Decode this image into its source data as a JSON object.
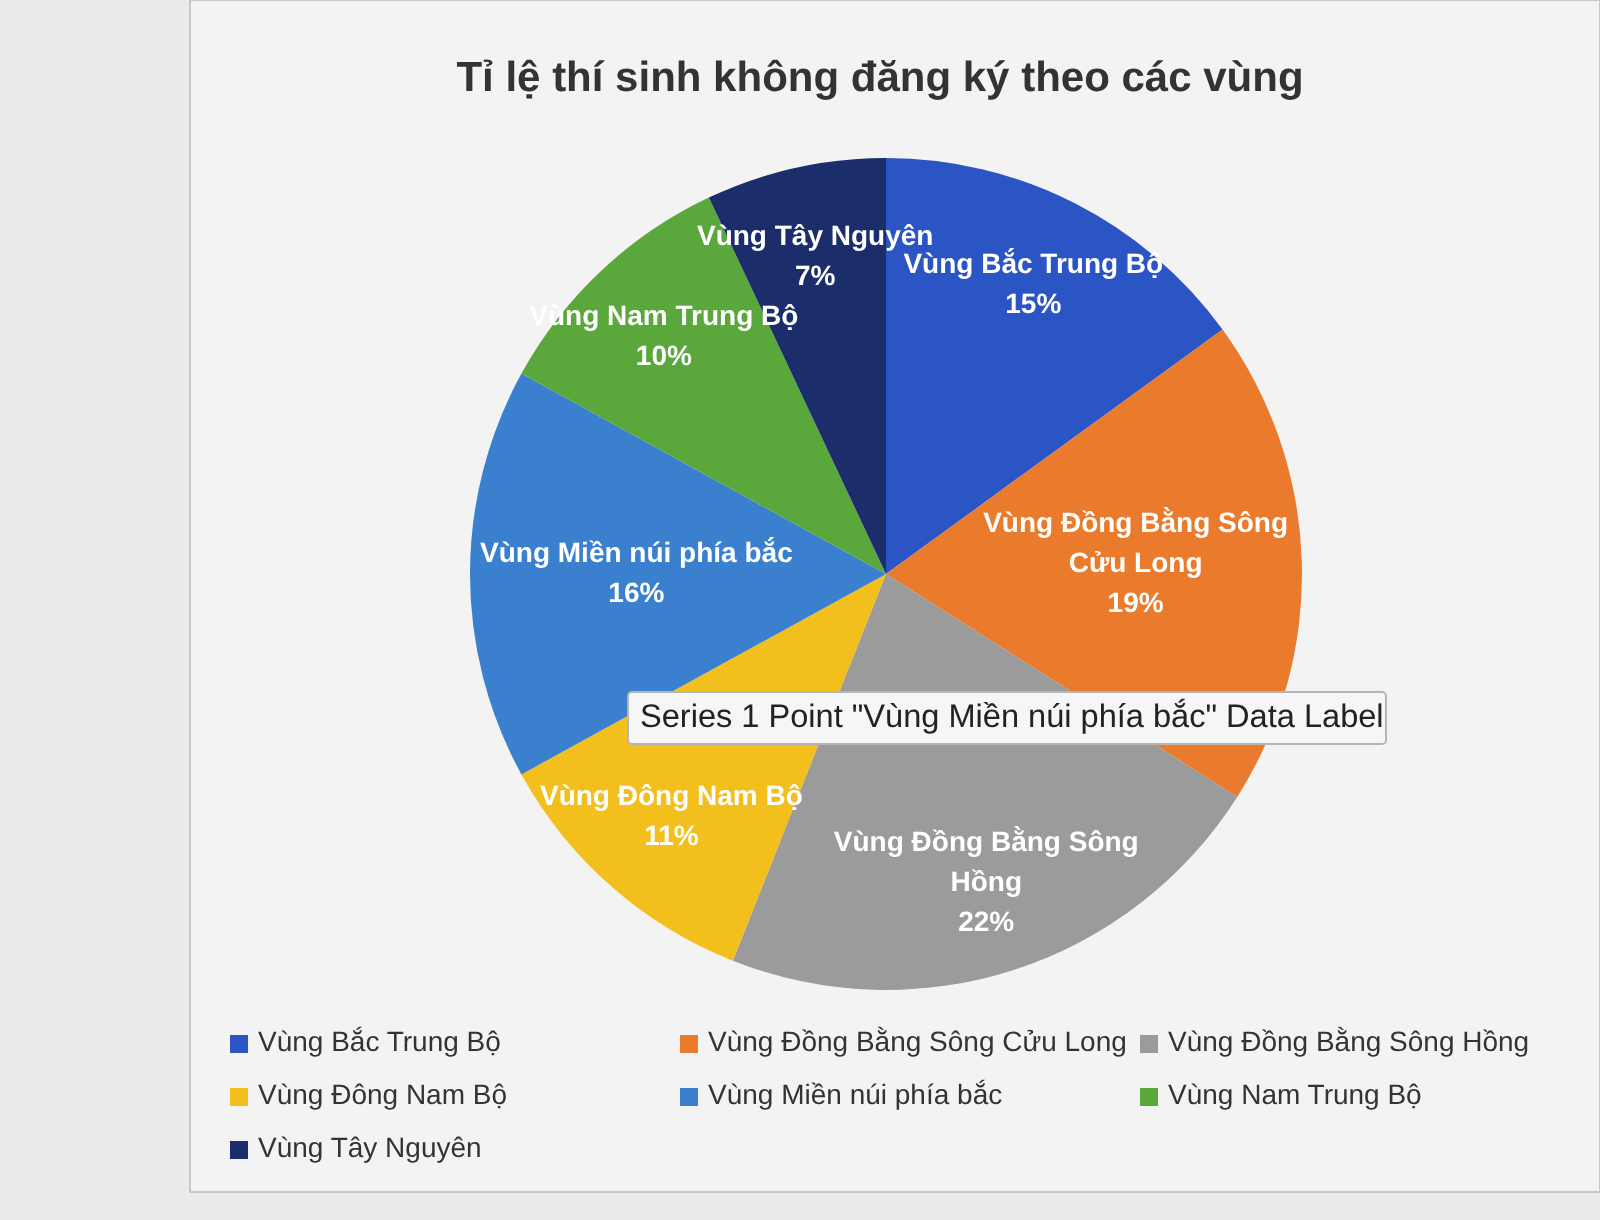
{
  "chart_data": {
    "type": "pie",
    "title": "Tỉ lệ thí sinh không đăng ký theo các vùng",
    "categories": [
      "Vùng Bắc Trung Bộ",
      "Vùng Đồng Bằng Sông Cửu Long",
      "Vùng Đồng Bằng Sông Hồng",
      "Vùng Đông Nam Bộ",
      "Vùng Miền núi phía bắc",
      "Vùng Nam Trung Bộ",
      "Vùng Tây Nguyên"
    ],
    "values": [
      15,
      19,
      22,
      11,
      16,
      10,
      7
    ],
    "colors": [
      "#2b54c4",
      "#ea7a2c",
      "#9b9b9b",
      "#f3bf1c",
      "#3a80cf",
      "#5aa83c",
      "#1b2d6b"
    ],
    "value_labels": [
      "15%",
      "19%",
      "22%",
      "11%",
      "16%",
      "10%",
      "7%"
    ],
    "legend": "bottom",
    "annotations": [
      "Series 1 Point \"Vùng Miền núi phía bắc\" Data Label"
    ]
  }
}
